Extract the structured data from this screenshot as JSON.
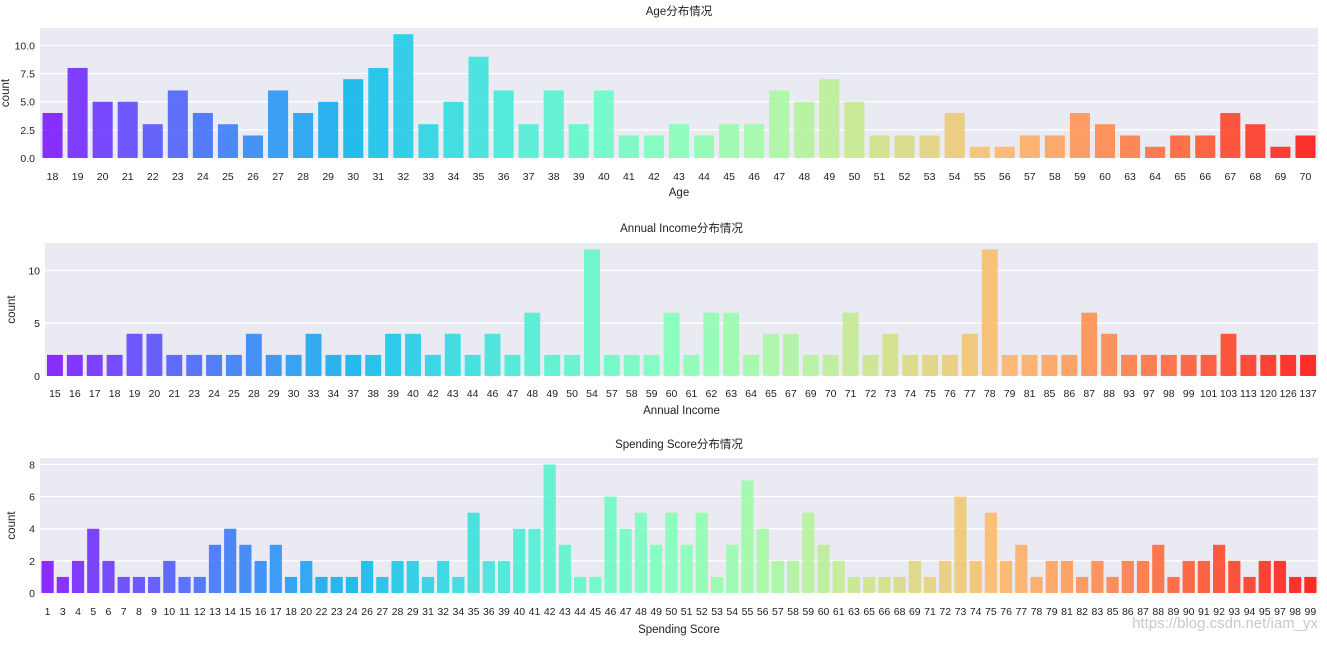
{
  "chart_data": [
    {
      "type": "bar",
      "title": "Age分布情况",
      "xlabel": "Age",
      "ylabel": "count",
      "yticks": [
        "0.0",
        "2.5",
        "5.0",
        "7.5",
        "10.0"
      ],
      "ylim": [
        0,
        11.55
      ],
      "grid": true,
      "palette": "rainbow",
      "categories": [
        "18",
        "19",
        "20",
        "21",
        "22",
        "23",
        "24",
        "25",
        "26",
        "27",
        "28",
        "29",
        "30",
        "31",
        "32",
        "33",
        "34",
        "35",
        "36",
        "37",
        "38",
        "39",
        "40",
        "41",
        "42",
        "43",
        "44",
        "45",
        "46",
        "47",
        "48",
        "49",
        "50",
        "51",
        "52",
        "53",
        "54",
        "55",
        "56",
        "57",
        "58",
        "59",
        "60",
        "63",
        "64",
        "65",
        "66",
        "67",
        "68",
        "69",
        "70"
      ],
      "values": [
        4,
        8,
        5,
        5,
        3,
        6,
        4,
        3,
        2,
        6,
        4,
        5,
        7,
        8,
        11,
        3,
        5,
        9,
        6,
        3,
        6,
        3,
        6,
        2,
        2,
        3,
        2,
        3,
        3,
        6,
        5,
        7,
        5,
        2,
        2,
        2,
        4,
        1,
        1,
        2,
        2,
        4,
        3,
        2,
        1,
        2,
        2,
        4,
        3,
        1,
        2
      ]
    },
    {
      "type": "bar",
      "title": "Annual Income分布情况",
      "xlabel": "Annual Income",
      "ylabel": "count",
      "yticks": [
        "0",
        "5",
        "10"
      ],
      "ylim": [
        0,
        12.6
      ],
      "grid": true,
      "palette": "rainbow",
      "categories": [
        "15",
        "16",
        "17",
        "18",
        "19",
        "20",
        "21",
        "23",
        "24",
        "25",
        "28",
        "29",
        "30",
        "33",
        "34",
        "37",
        "38",
        "39",
        "40",
        "42",
        "43",
        "44",
        "46",
        "47",
        "48",
        "49",
        "50",
        "54",
        "57",
        "58",
        "59",
        "60",
        "61",
        "62",
        "63",
        "64",
        "65",
        "67",
        "69",
        "70",
        "71",
        "72",
        "73",
        "74",
        "75",
        "76",
        "77",
        "78",
        "79",
        "81",
        "85",
        "86",
        "87",
        "88",
        "93",
        "97",
        "98",
        "99",
        "101",
        "103",
        "113",
        "120",
        "126",
        "137"
      ],
      "values": [
        2,
        2,
        2,
        2,
        4,
        4,
        2,
        2,
        2,
        2,
        4,
        2,
        2,
        4,
        2,
        2,
        2,
        4,
        4,
        2,
        4,
        2,
        4,
        2,
        6,
        2,
        2,
        12,
        2,
        2,
        2,
        6,
        2,
        6,
        6,
        2,
        4,
        4,
        2,
        2,
        6,
        2,
        4,
        2,
        2,
        2,
        4,
        12,
        2,
        2,
        2,
        2,
        6,
        4,
        2,
        2,
        2,
        2,
        2,
        4,
        2,
        2,
        2,
        2
      ]
    },
    {
      "type": "bar",
      "title": "Spending Score分布情况",
      "xlabel": "Spending Score",
      "ylabel": "count",
      "yticks": [
        "0",
        "2",
        "4",
        "6",
        "8"
      ],
      "ylim": [
        0,
        8.4
      ],
      "grid": true,
      "palette": "rainbow",
      "categories": [
        "1",
        "3",
        "4",
        "5",
        "6",
        "7",
        "8",
        "9",
        "10",
        "11",
        "12",
        "13",
        "14",
        "15",
        "16",
        "17",
        "18",
        "20",
        "22",
        "23",
        "24",
        "26",
        "27",
        "28",
        "29",
        "31",
        "32",
        "34",
        "35",
        "36",
        "39",
        "40",
        "41",
        "42",
        "43",
        "44",
        "45",
        "46",
        "47",
        "48",
        "49",
        "50",
        "51",
        "52",
        "53",
        "54",
        "55",
        "56",
        "57",
        "58",
        "59",
        "60",
        "61",
        "63",
        "65",
        "66",
        "68",
        "69",
        "71",
        "72",
        "73",
        "74",
        "75",
        "76",
        "77",
        "78",
        "79",
        "81",
        "82",
        "83",
        "85",
        "86",
        "87",
        "88",
        "89",
        "90",
        "91",
        "92",
        "93",
        "94",
        "95",
        "97",
        "98",
        "99"
      ],
      "values": [
        2,
        1,
        2,
        4,
        2,
        1,
        1,
        1,
        2,
        1,
        1,
        3,
        4,
        3,
        2,
        3,
        1,
        2,
        1,
        1,
        1,
        2,
        1,
        2,
        2,
        1,
        2,
        1,
        5,
        2,
        2,
        4,
        4,
        8,
        3,
        1,
        1,
        6,
        4,
        5,
        3,
        5,
        3,
        5,
        1,
        3,
        7,
        4,
        2,
        2,
        5,
        3,
        2,
        1,
        1,
        1,
        1,
        2,
        1,
        2,
        6,
        2,
        5,
        2,
        3,
        1,
        2,
        2,
        1,
        2,
        1,
        2,
        2,
        3,
        1,
        2,
        2,
        3,
        2,
        1,
        2,
        2,
        1,
        1
      ]
    }
  ],
  "colors": {
    "plot_background": "#eaeaf2",
    "grid": "#ffffff"
  },
  "watermark": "https://blog.csdn.net/iam_yx"
}
